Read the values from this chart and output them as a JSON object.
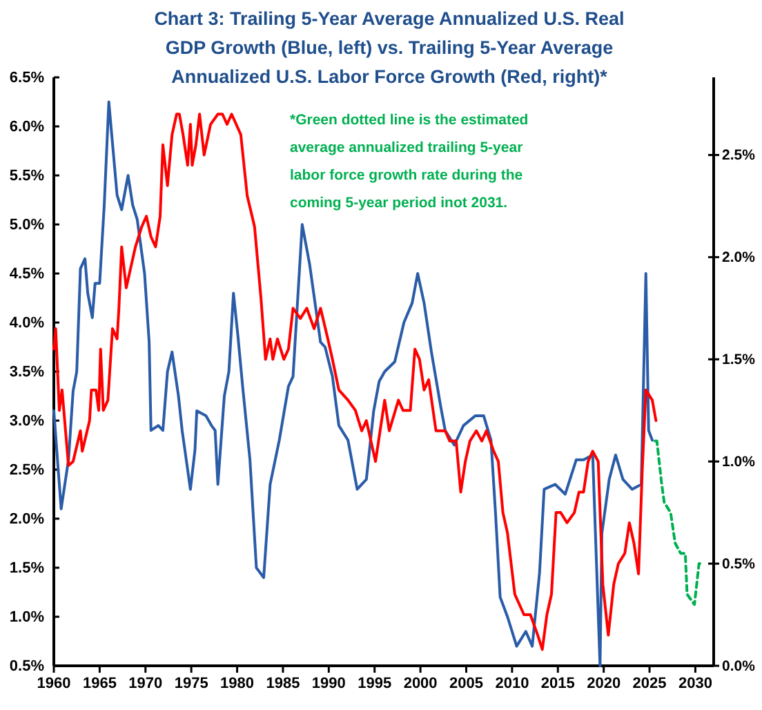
{
  "chart_data": {
    "type": "line",
    "title": "Chart 3: Trailing 5-Year Average Annualized U.S. Real GDP Growth (Blue, left) vs. Trailing 5-Year Average Annualized U.S. Labor Force Growth (Red, right)*",
    "annotations": [
      "*Green dotted line is the estimated average annualized trailing 5-year labor force growth rate during the coming 5-year period inot 2031."
    ],
    "xlim": [
      1960,
      2032
    ],
    "xticks": [
      1960,
      1965,
      1970,
      1975,
      1980,
      1985,
      1990,
      1995,
      2000,
      2005,
      2010,
      2015,
      2020,
      2025,
      2030
    ],
    "ylim": [
      0.5,
      6.5
    ],
    "yticks": [
      {
        "value": 0.5,
        "label": "0.5%"
      },
      {
        "value": 1,
        "label": "1.0%"
      },
      {
        "value": 1.5,
        "label": "1.5%"
      },
      {
        "value": 2,
        "label": "2.0%"
      },
      {
        "value": 2.5,
        "label": "2.5%"
      },
      {
        "value": 3,
        "label": "3.0%"
      },
      {
        "value": 3.5,
        "label": "3.5%"
      },
      {
        "value": 4,
        "label": "4.0%"
      },
      {
        "value": 4.5,
        "label": "4.5%"
      },
      {
        "value": 5,
        "label": "5.0%"
      },
      {
        "value": 5.5,
        "label": "5.5%"
      },
      {
        "value": 6,
        "label": "6.0%"
      },
      {
        "value": 6.5,
        "label": "6.5%"
      }
    ],
    "y2lim": [
      0,
      2.88
    ],
    "y2ticks": [
      {
        "value": 0,
        "label": "0.0%"
      },
      {
        "value": 0.5,
        "label": "0.5%"
      },
      {
        "value": 1,
        "label": "1.0%"
      },
      {
        "value": 1.5,
        "label": "1.5%"
      },
      {
        "value": 2,
        "label": "2.0%"
      },
      {
        "value": 2.5,
        "label": "2.5%"
      }
    ],
    "grid": false,
    "series": [
      {
        "color": "#2a5ca8",
        "x": [
          1960,
          1960.8,
          1961.6,
          1962.1,
          1962.5,
          1962.9,
          1963.4,
          1963.7,
          1964.2,
          1964.5,
          1965,
          1965.5,
          1966,
          1966.9,
          1967.4,
          1968.1,
          1968.6,
          1969.1,
          1969.9,
          1970.4,
          1970.6,
          1971.4,
          1971.9,
          1972.4,
          1972.9,
          1973.6,
          1974,
          1974.6,
          1974.9,
          1975.4,
          1975.6,
          1976.6,
          1977.2,
          1977.6,
          1977.9,
          1978.6,
          1979.1,
          1979.6,
          1980.1,
          1980.6,
          1981.4,
          1982.1,
          1982.9,
          1983.6,
          1984.6,
          1985.6,
          1986.1,
          1987.1,
          1987.9,
          1989.1,
          1989.6,
          1990.4,
          1991.1,
          1992.1,
          1993.1,
          1994.1,
          1994.9,
          1995.5,
          1996.1,
          1997.2,
          1998.2,
          1999.1,
          1999.7,
          2000.4,
          2001.2,
          2002.2,
          2002.7,
          2003.7,
          2004.7,
          2006,
          2006.9,
          2007.7,
          2008.2,
          2008.7,
          2009.5,
          2010.5,
          2011.5,
          2012.2,
          2013,
          2013.5,
          2014.7,
          2015.8,
          2017,
          2017.8,
          2018.8,
          2019.6,
          2019.8,
          2020.6,
          2021.3,
          2022.1,
          2023.1,
          2024.1,
          2024.6,
          2024.9,
          2025.3
        ],
        "values": [
          3.1,
          2.1,
          2.6,
          3.3,
          3.5,
          4.55,
          4.65,
          4.3,
          4.05,
          4.4,
          4.4,
          5.2,
          6.25,
          5.3,
          5.15,
          5.5,
          5.2,
          5.05,
          4.5,
          3.8,
          2.9,
          2.95,
          2.9,
          3.5,
          3.7,
          3.25,
          2.9,
          2.5,
          2.3,
          2.7,
          3.1,
          3.05,
          2.95,
          2.9,
          2.35,
          3.25,
          3.5,
          4.3,
          3.85,
          3.35,
          2.6,
          1.5,
          1.4,
          2.35,
          2.8,
          3.35,
          3.45,
          5.0,
          4.6,
          3.8,
          3.75,
          3.45,
          2.95,
          2.8,
          2.3,
          2.4,
          3.1,
          3.4,
          3.5,
          3.6,
          4.0,
          4.2,
          4.5,
          4.2,
          3.7,
          3.15,
          2.9,
          2.75,
          2.95,
          3.05,
          3.05,
          2.8,
          2.05,
          1.2,
          1.0,
          0.7,
          0.85,
          0.7,
          1.45,
          2.3,
          2.35,
          2.25,
          2.6,
          2.6,
          2.65,
          0.5,
          1.85,
          2.4,
          2.65,
          2.4,
          2.3,
          2.35,
          4.5,
          2.9,
          2.8
        ]
      },
      {
        "color": "#ff0000",
        "axis": "y2",
        "x": [
          1960,
          1960.2,
          1960.6,
          1960.9,
          1961.6,
          1962.1,
          1962.9,
          1963.1,
          1963.9,
          1964.1,
          1964.6,
          1964.9,
          1965.1,
          1965.4,
          1965.9,
          1966.4,
          1966.9,
          1967.1,
          1967.4,
          1967.9,
          1968.4,
          1968.9,
          1969.6,
          1970.1,
          1970.6,
          1971.1,
          1971.6,
          1971.9,
          1972.4,
          1972.9,
          1973.4,
          1973.7,
          1974.1,
          1974.6,
          1974.9,
          1975.1,
          1975.5,
          1975.9,
          1976.4,
          1977.1,
          1977.9,
          1978.4,
          1978.9,
          1979.4,
          1979.9,
          1980.4,
          1981.1,
          1981.9,
          1982.6,
          1983.1,
          1983.6,
          1983.9,
          1984.4,
          1985.1,
          1985.6,
          1986.1,
          1986.9,
          1987.6,
          1988.4,
          1989.1,
          1989.9,
          1990.4,
          1991.1,
          1992.1,
          1992.9,
          1993.6,
          1994.1,
          1995.1,
          1996.1,
          1996.6,
          1997.6,
          1998.1,
          1998.9,
          1999.4,
          1999.9,
          2000.4,
          2000.9,
          2001.7,
          2002.7,
          2003.2,
          2003.9,
          2004.4,
          2004.9,
          2005.4,
          2006.1,
          2006.7,
          2007.2,
          2008,
          2008.5,
          2009,
          2009.5,
          2010.3,
          2010.8,
          2011.3,
          2012,
          2012.8,
          2013.3,
          2013.8,
          2014.3,
          2014.8,
          2015.3,
          2016,
          2016.8,
          2017.3,
          2017.8,
          2018.3,
          2018.8,
          2019.4,
          2019.9,
          2020.5,
          2021.1,
          2021.6,
          2022.3,
          2022.8,
          2023.3,
          2023.8,
          2024.2,
          2024.6,
          2025.3,
          2025.7
        ],
        "values": [
          1.55,
          1.65,
          1.25,
          1.35,
          0.98,
          1.0,
          1.15,
          1.05,
          1.2,
          1.35,
          1.35,
          1.25,
          1.55,
          1.25,
          1.3,
          1.65,
          1.6,
          1.75,
          2.05,
          1.85,
          1.95,
          2.05,
          2.15,
          2.2,
          2.1,
          2.05,
          2.2,
          2.55,
          2.35,
          2.6,
          2.7,
          2.7,
          2.6,
          2.45,
          2.65,
          2.45,
          2.55,
          2.7,
          2.5,
          2.65,
          2.7,
          2.7,
          2.65,
          2.7,
          2.65,
          2.6,
          2.3,
          2.15,
          1.8,
          1.5,
          1.6,
          1.5,
          1.6,
          1.5,
          1.55,
          1.75,
          1.7,
          1.75,
          1.65,
          1.75,
          1.6,
          1.5,
          1.35,
          1.3,
          1.25,
          1.15,
          1.2,
          1.0,
          1.3,
          1.15,
          1.3,
          1.25,
          1.25,
          1.55,
          1.5,
          1.35,
          1.4,
          1.15,
          1.15,
          1.1,
          1.1,
          0.85,
          1.0,
          1.1,
          1.15,
          1.1,
          1.15,
          1.05,
          1.0,
          0.75,
          0.65,
          0.35,
          0.3,
          0.25,
          0.25,
          0.15,
          0.08,
          0.25,
          0.35,
          0.75,
          0.75,
          0.7,
          0.75,
          0.85,
          0.85,
          1.0,
          1.05,
          1.0,
          0.4,
          0.15,
          0.4,
          0.5,
          0.55,
          0.7,
          0.6,
          0.45,
          0.95,
          1.35,
          1.3,
          1.2
        ]
      },
      {
        "color": "#00b050",
        "axis": "y2",
        "line_style": "dashed",
        "x": [
          2025.6,
          2025.8,
          2026.3,
          2026.6,
          2027.3,
          2027.8,
          2028.4,
          2028.9,
          2029.1,
          2029.9,
          2030.4,
          2030.6
        ],
        "values": [
          1.1,
          1.1,
          0.9,
          0.8,
          0.75,
          0.6,
          0.55,
          0.55,
          0.35,
          0.3,
          0.5,
          0.5
        ]
      }
    ]
  }
}
